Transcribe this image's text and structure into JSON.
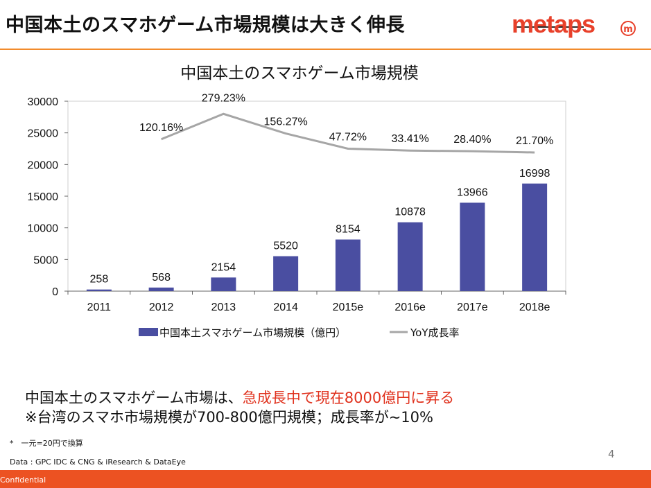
{
  "slide": {
    "title": "中国本土のスマホゲーム市場規模は大きく伸長",
    "logo_text": "metaps",
    "logo_badge": "m",
    "note_line1_prefix": "中国本土のスマホゲーム市場は、",
    "note_line1_highlight": "急成長中で現在8000億円に昇る",
    "note_line2": "※台湾のスマホ市場規模が700-800億円規模；成長率が~10%",
    "footnote": "*　一元=20円で換算",
    "source": "Data : GPC IDC & CNG & iResearch & DataEye",
    "page_number": "4",
    "confidential": "Confidential"
  },
  "colors": {
    "accent_orange": "#f28b2c",
    "footer_bar": "#ec5222",
    "bar_color": "#4a4ea1",
    "line_color": "#a6a6a6",
    "highlight_red": "#e0321e"
  },
  "chart_data": {
    "type": "bar",
    "title": "中国本土のスマホゲーム市場規模",
    "categories": [
      "2011",
      "2012",
      "2013",
      "2014",
      "2015e",
      "2016e",
      "2017e",
      "2018e"
    ],
    "series": [
      {
        "name": "中国本土スマホゲーム市場規模（億円）",
        "type": "bar",
        "values": [
          258,
          568,
          2154,
          5520,
          8154,
          10878,
          13966,
          16998
        ],
        "labels": [
          "258",
          "568",
          "2154",
          "5520",
          "8154",
          "10878",
          "13966",
          "16998"
        ]
      },
      {
        "name": "YoY成長率",
        "type": "line",
        "values": [
          null,
          120.16,
          279.23,
          156.27,
          47.72,
          33.41,
          28.4,
          21.7
        ],
        "labels": [
          "",
          "120.16%",
          "279.23%",
          "156.27%",
          "47.72%",
          "33.41%",
          "28.40%",
          "21.70%"
        ]
      }
    ],
    "yticks": [
      "0",
      "5000",
      "10000",
      "15000",
      "20000",
      "25000",
      "30000"
    ],
    "ylim": [
      0,
      30000
    ],
    "legend_position": "bottom",
    "grid": false
  }
}
